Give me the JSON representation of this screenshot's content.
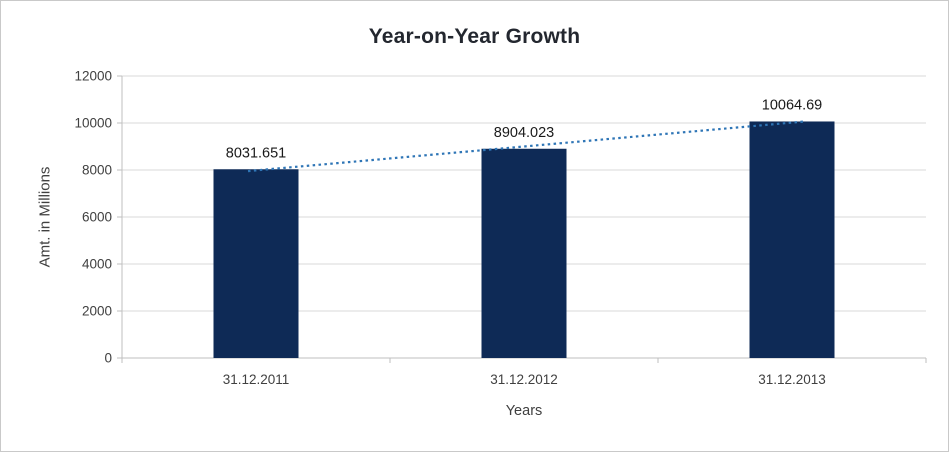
{
  "chart_data": {
    "type": "bar",
    "title": "Year-on-Year Growth",
    "xlabel": "Years",
    "ylabel": "Amt. in Millions",
    "categories": [
      "31.12.2011",
      "31.12.2012",
      "31.12.2013"
    ],
    "series": [
      {
        "name": "Amt. in Millions",
        "values": [
          8031.651,
          8904.023,
          10064.69
        ]
      }
    ],
    "data_labels": [
      "8031.651",
      "8904.023",
      "10064.69"
    ],
    "yticks": [
      0,
      2000,
      4000,
      6000,
      8000,
      10000,
      12000
    ],
    "ylim": [
      0,
      12000
    ],
    "grid": true,
    "legend": "none",
    "trendline": {
      "fit": "linear",
      "style": "dotted",
      "color": "#2e75b6"
    },
    "colors": {
      "bar": "#0e2a56",
      "gridline": "#d9d9d9",
      "axis_line": "#bfbfbf",
      "axis_text": "#404040",
      "data_label_text": "#1a1a1a",
      "title_text": "#23272f",
      "background": "#ffffff",
      "frame_border": "#c9c9c9"
    }
  }
}
